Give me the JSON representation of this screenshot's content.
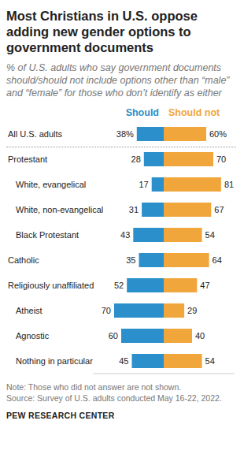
{
  "chart_data": {
    "type": "bar",
    "orientation": "horizontal",
    "title": "Most Christians in U.S. oppose adding new gender options to government documents",
    "subtitle": "% of U.S. adults who say government documents should/should not include options other than “male” and “female” for those who don’t identify as either",
    "note": "Note: Those who did not answer are not shown.",
    "source": "Source: Survey of U.S. adults conducted May 16-22, 2022.",
    "credit": "PEW RESEARCH CENTER",
    "categories": [
      "All U.S. adults",
      "Protestant",
      "White, evangelical",
      "White, non-evangelical",
      "Black Protestant",
      "Catholic",
      "Religiously unaffiliated",
      "Atheist",
      "Agnostic",
      "Nothing in particular"
    ],
    "series": [
      {
        "name": "Should",
        "color": "#2a8fcb",
        "values": [
          38,
          28,
          17,
          31,
          43,
          35,
          52,
          70,
          60,
          45
        ],
        "value_labels": [
          "38%",
          "28",
          "17",
          "31",
          "43",
          "35",
          "52",
          "70",
          "60",
          "45"
        ]
      },
      {
        "name": "Should not",
        "color": "#f1a63c",
        "values": [
          60,
          70,
          81,
          67,
          54,
          64,
          47,
          29,
          40,
          54
        ],
        "value_labels": [
          "60%",
          "70",
          "81",
          "67",
          "54",
          "64",
          "47",
          "29",
          "40",
          "54"
        ]
      }
    ],
    "xlim": [
      0,
      100
    ],
    "data_labels": true,
    "tick_labels": "y",
    "grid": false
  }
}
